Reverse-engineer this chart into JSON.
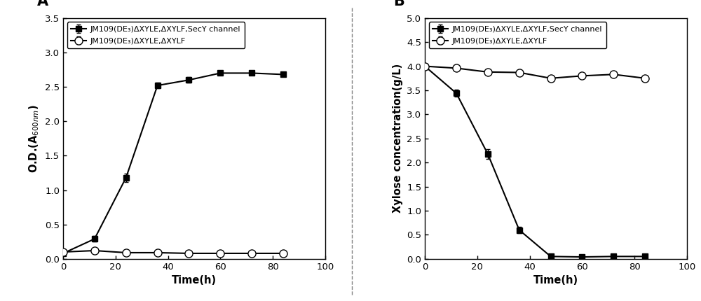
{
  "panel_A": {
    "title": "A",
    "xlabel": "Time(h)",
    "xlim": [
      0,
      100
    ],
    "ylim": [
      0.0,
      3.5
    ],
    "xticks": [
      0,
      20,
      40,
      60,
      80,
      100
    ],
    "yticks": [
      0.0,
      0.5,
      1.0,
      1.5,
      2.0,
      2.5,
      3.0,
      3.5
    ],
    "series1_label": "JM109(DE₃)ΔXYLE,ΔXYLF,SecY channel",
    "series2_label": "JM109(DE₃)ΔXYLE,ΔXYLF",
    "series1_x": [
      0,
      12,
      24,
      36,
      48,
      60,
      72,
      84
    ],
    "series1_y": [
      0.08,
      0.29,
      1.18,
      2.52,
      2.6,
      2.7,
      2.7,
      2.68
    ],
    "series1_err": [
      0.03,
      0.04,
      0.06,
      0.04,
      0.04,
      0.03,
      0.03,
      0.03
    ],
    "series2_x": [
      0,
      12,
      24,
      36,
      48,
      60,
      72,
      84
    ],
    "series2_y": [
      0.1,
      0.12,
      0.09,
      0.09,
      0.08,
      0.08,
      0.08,
      0.08
    ],
    "series2_err": [
      0.02,
      0.02,
      0.01,
      0.01,
      0.01,
      0.01,
      0.01,
      0.01
    ]
  },
  "panel_B": {
    "title": "B",
    "xlabel": "Time(h)",
    "xlim": [
      0,
      100
    ],
    "ylim": [
      0.0,
      5.0
    ],
    "xticks": [
      0,
      20,
      40,
      60,
      80,
      100
    ],
    "yticks": [
      0.0,
      0.5,
      1.0,
      1.5,
      2.0,
      2.5,
      3.0,
      3.5,
      4.0,
      4.5,
      5.0
    ],
    "series1_label": "JM109(DE₃)ΔXYLE,ΔXYLF,SecY channel",
    "series2_label": "JM109(DE₃)ΔXYLE,ΔXYLF",
    "series1_x": [
      0,
      12,
      24,
      36,
      48,
      60,
      72,
      84
    ],
    "series1_y": [
      4.0,
      3.44,
      2.18,
      0.6,
      0.05,
      0.04,
      0.05,
      0.05
    ],
    "series1_err": [
      0.05,
      0.07,
      0.1,
      0.06,
      0.02,
      0.02,
      0.02,
      0.02
    ],
    "series2_x": [
      0,
      12,
      24,
      36,
      48,
      60,
      72,
      84
    ],
    "series2_y": [
      4.0,
      3.96,
      3.88,
      3.87,
      3.75,
      3.8,
      3.83,
      3.75
    ],
    "series2_err": [
      0.05,
      0.04,
      0.05,
      0.05,
      0.04,
      0.04,
      0.04,
      0.04
    ]
  },
  "bg_color": "#ffffff",
  "line_color": "#000000",
  "marker_size": 6,
  "linewidth": 1.5,
  "capsize": 2,
  "elinewidth": 1.0,
  "divider_x": 0.502,
  "legend_fontsize": 8.0,
  "tick_fontsize": 9.5,
  "label_fontsize": 10.5,
  "title_fontsize": 15
}
